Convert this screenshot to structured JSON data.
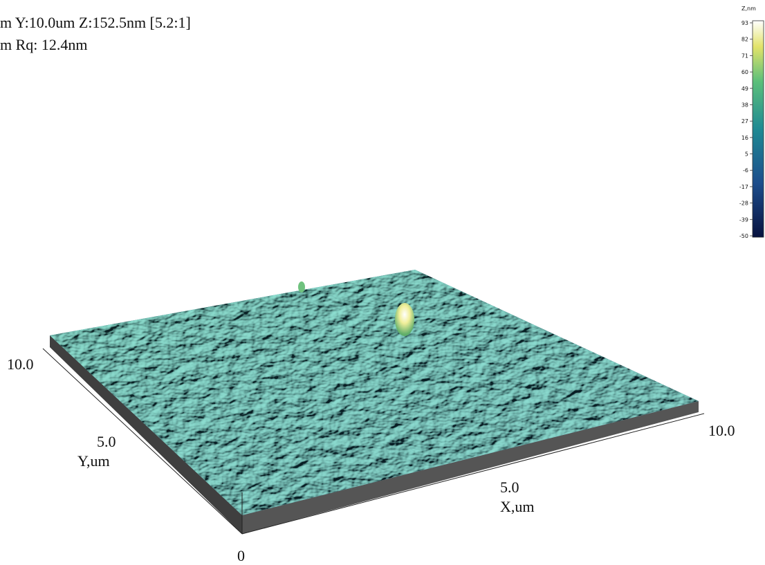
{
  "header": {
    "lines": [
      "m  Y:10.0um  Z:152.5nm [5.2:1]",
      "m  Rq: 12.4nm"
    ]
  },
  "colorbar": {
    "title": "Z,nm",
    "ticks": [
      93,
      82,
      71,
      60,
      49,
      38,
      27,
      16,
      5,
      -6,
      -17,
      -28,
      -39,
      -50
    ]
  },
  "axes": {
    "y_end": "10.0",
    "y_mid": "5.0",
    "y_label": "Y,um",
    "origin": "0",
    "x_mid": "5.0",
    "x_label": "X,um",
    "x_end": "10.0"
  }
}
